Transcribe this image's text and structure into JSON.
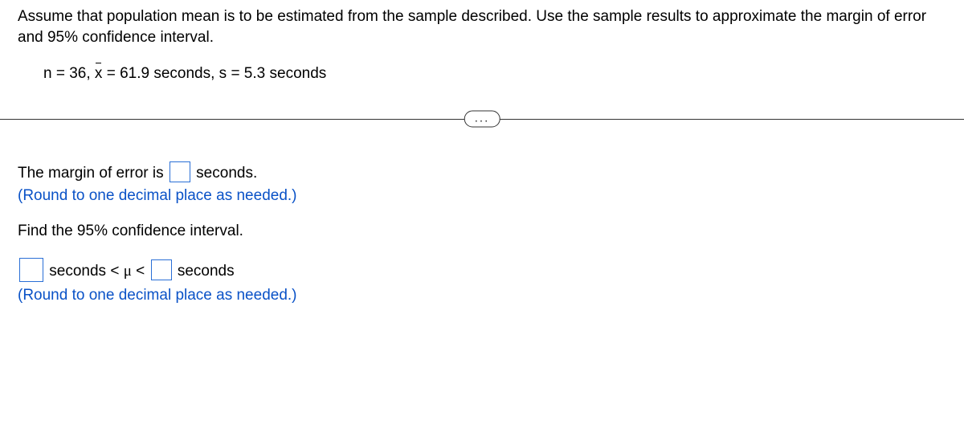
{
  "problem": {
    "intro": "Assume that population mean is to be estimated from the sample described. Use the sample results to approximate the margin of error and 95% confidence interval.",
    "given_prefix": "n = 36, ",
    "given_xbar_var": "x",
    "given_after_xbar": " = 61.9 seconds, s = 5.3 seconds"
  },
  "divider": {
    "dots": "..."
  },
  "answers": {
    "moe_before": "The margin of error is ",
    "moe_after": " seconds.",
    "round_hint_1": "(Round to one decimal place as needed.)",
    "ci_prompt": "Find the 95% confidence interval.",
    "ci_unit_lt": " seconds < ",
    "ci_mu": "μ",
    "ci_lt_box": " < ",
    "ci_after": " seconds",
    "round_hint_2": "(Round to one decimal place as needed.)",
    "inputs": {
      "moe": "",
      "ci_low": "",
      "ci_high": ""
    }
  }
}
